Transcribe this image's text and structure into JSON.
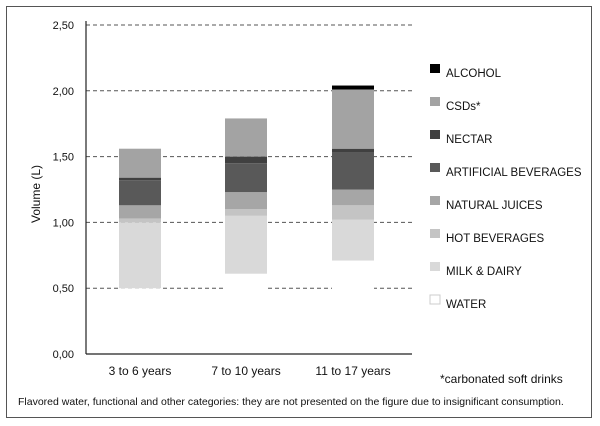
{
  "chart_data": {
    "type": "bar",
    "stacked": true,
    "categories": [
      "3 to 6 years",
      "7 to 10 years",
      "11 to 17 years"
    ],
    "ylabel": "Volume (L)",
    "ylim": [
      0,
      2.5
    ],
    "yticks": [
      "0,00",
      "0,50",
      "1,00",
      "1,50",
      "2,00",
      "2,50"
    ],
    "ytick_values": [
      0,
      0.5,
      1.0,
      1.5,
      2.0,
      2.5
    ],
    "grid": "horizontal-dashed",
    "legend_position": "right",
    "series": [
      {
        "name": "WATER",
        "color": "#ffffff",
        "values": [
          0.5,
          0.61,
          0.71
        ]
      },
      {
        "name": "MILK & DAIRY",
        "color": "#d9d9d9",
        "values": [
          0.5,
          0.44,
          0.31
        ]
      },
      {
        "name": "HOT BEVERAGES",
        "color": "#c4c4c4",
        "values": [
          0.03,
          0.05,
          0.11
        ]
      },
      {
        "name": "NATURAL JUICES",
        "color": "#a6a6a6",
        "values": [
          0.1,
          0.13,
          0.12
        ]
      },
      {
        "name": "ARTIFICIAL BEVERAGES",
        "color": "#595959",
        "values": [
          0.19,
          0.22,
          0.28
        ]
      },
      {
        "name": "NECTAR",
        "color": "#404040",
        "values": [
          0.02,
          0.05,
          0.03
        ]
      },
      {
        "name": "CSDs*",
        "color": "#a3a3a3",
        "values": [
          0.22,
          0.29,
          0.45
        ]
      },
      {
        "name": "ALCOHOL",
        "color": "#000000",
        "values": [
          0.0,
          0.0,
          0.03
        ]
      }
    ]
  },
  "footnote": "*carbonated soft drinks",
  "note": "Flavored water, functional and other categories: they are not presented on the figure due to insignificant consumption."
}
